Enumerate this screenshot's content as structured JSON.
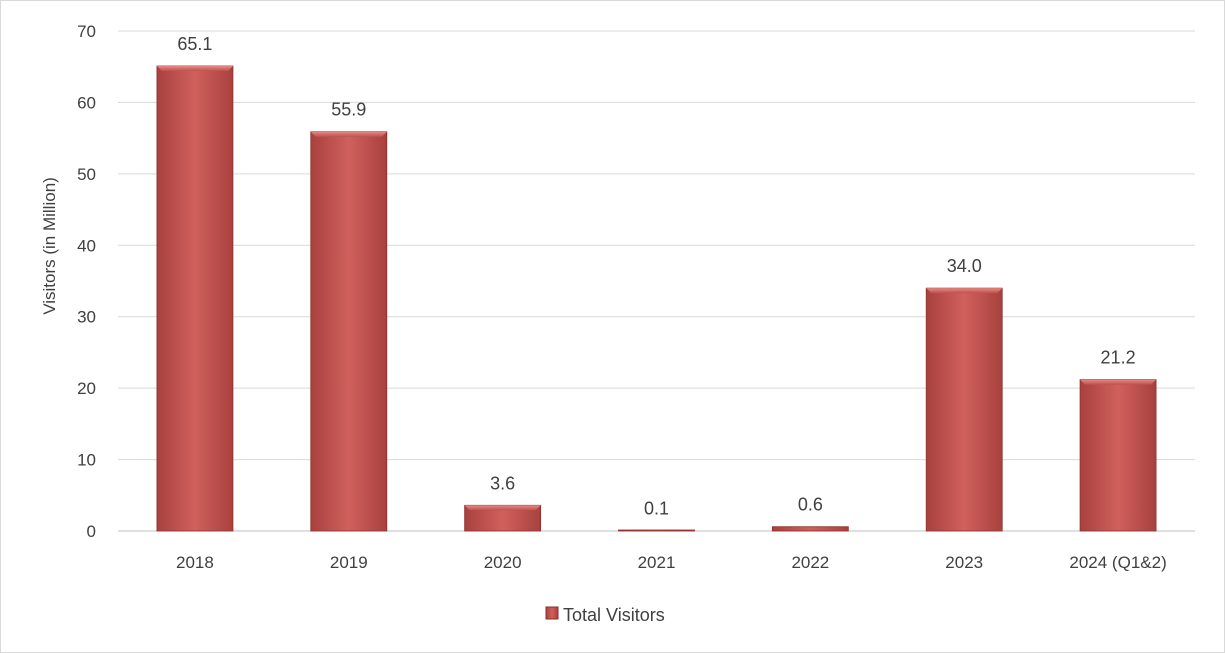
{
  "chart_data": {
    "type": "bar",
    "categories": [
      "2018",
      "2019",
      "2020",
      "2021",
      "2022",
      "2023",
      "2024 (Q1&2)"
    ],
    "series": [
      {
        "name": "Total Visitors",
        "values": [
          65.1,
          55.9,
          3.6,
          0.1,
          0.6,
          34.0,
          21.2
        ],
        "data_labels": [
          "65.1",
          "55.9",
          "3.6",
          "0.1",
          "0.6",
          "34.0",
          "21.2"
        ]
      }
    ],
    "title": "",
    "xlabel": "",
    "ylabel": "Visitors (in Million)",
    "ylim": [
      0,
      70
    ],
    "yticks": [
      "0",
      "10",
      "20",
      "30",
      "40",
      "50",
      "60",
      "70"
    ],
    "grid": true,
    "legend_position": "bottom",
    "colors": {
      "bar": "#c0504d",
      "bar_light": "#e07b78",
      "bar_dark": "#8c2f2c",
      "grid": "#d9d9d9"
    }
  }
}
